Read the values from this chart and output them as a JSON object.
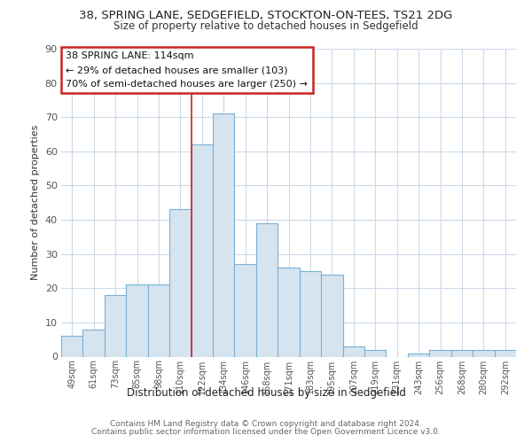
{
  "title1": "38, SPRING LANE, SEDGEFIELD, STOCKTON-ON-TEES, TS21 2DG",
  "title2": "Size of property relative to detached houses in Sedgefield",
  "xlabel": "Distribution of detached houses by size in Sedgefield",
  "ylabel": "Number of detached properties",
  "categories": [
    "49sqm",
    "61sqm",
    "73sqm",
    "85sqm",
    "98sqm",
    "110sqm",
    "122sqm",
    "134sqm",
    "146sqm",
    "158sqm",
    "171sqm",
    "183sqm",
    "195sqm",
    "207sqm",
    "219sqm",
    "231sqm",
    "243sqm",
    "256sqm",
    "268sqm",
    "280sqm",
    "292sqm"
  ],
  "values": [
    6,
    8,
    18,
    21,
    21,
    43,
    62,
    71,
    27,
    39,
    26,
    25,
    24,
    3,
    2,
    0,
    1,
    2,
    2,
    2,
    2
  ],
  "bar_color": "#d6e4f0",
  "bar_edge_color": "#7ab0d4",
  "vline_x": 5.5,
  "vline_color": "#cc2222",
  "annotation_title": "38 SPRING LANE: 114sqm",
  "annotation_line1": "← 29% of detached houses are smaller (103)",
  "annotation_line2": "70% of semi-detached houses are larger (250) →",
  "annotation_box_color": "#cc2222",
  "ylim": [
    0,
    90
  ],
  "yticks": [
    0,
    10,
    20,
    30,
    40,
    50,
    60,
    70,
    80,
    90
  ],
  "footer1": "Contains HM Land Registry data © Crown copyright and database right 2024.",
  "footer2": "Contains public sector information licensed under the Open Government Licence v3.0.",
  "bg_color": "#ffffff",
  "grid_color": "#ccd9e8"
}
